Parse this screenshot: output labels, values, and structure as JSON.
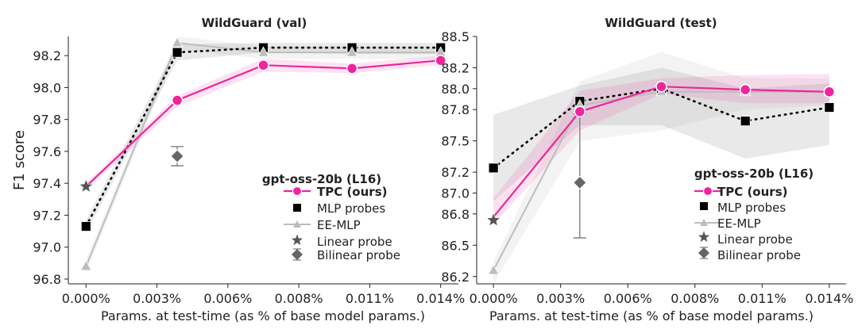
{
  "shared": {
    "ylabel": "F1 score",
    "xlabel": "Params. at test-time (as % of base model params.)",
    "legend_title": "gpt-oss-20b (L16)"
  },
  "chart_data": [
    {
      "type": "line",
      "title": "WildGuard (val)",
      "xlabel": "Params. at test-time (as % of base model params.)",
      "ylabel": "F1 score",
      "xlim": [
        -0.0007,
        0.0147
      ],
      "ylim": [
        96.77,
        98.32
      ],
      "x_ticks": [
        0,
        0.0028,
        0.0056,
        0.0084,
        0.0112,
        0.014
      ],
      "x_tick_labels": [
        "0.000%",
        "0.003%",
        "0.006%",
        "0.008%",
        "0.011%",
        "0.014%"
      ],
      "y_ticks": [
        96.8,
        97.0,
        97.2,
        97.4,
        97.6,
        97.8,
        98.0,
        98.2
      ],
      "y_tick_labels": [
        "96.8",
        "97.0",
        "97.2",
        "97.4",
        "97.6",
        "97.8",
        "98.0",
        "98.2"
      ],
      "legend_title": "gpt-oss-20b (L16)",
      "series": [
        {
          "name": "TPC (ours)",
          "color": "#f0249b",
          "marker": "circle",
          "x": [
            0,
            0.0036,
            0.007,
            0.0105,
            0.014
          ],
          "values": [
            97.38,
            97.92,
            98.14,
            98.12,
            98.17
          ],
          "band_low": [
            97.36,
            97.88,
            98.1,
            98.09,
            98.14
          ],
          "band_high": [
            97.4,
            97.95,
            98.18,
            98.15,
            98.2
          ]
        },
        {
          "name": "MLP probes",
          "color": "#000000",
          "marker": "square",
          "x": [
            0,
            0.0036,
            0.007,
            0.0105,
            0.014
          ],
          "values": [
            97.13,
            98.22,
            98.25,
            98.25,
            98.25
          ],
          "band_low": [
            97.09,
            98.17,
            98.22,
            98.21,
            98.21
          ],
          "band_high": [
            97.17,
            98.27,
            98.28,
            98.28,
            98.28
          ]
        },
        {
          "name": "EE-MLP",
          "color": "#bdbdbd",
          "marker": "triangle",
          "x": [
            0,
            0.0036,
            0.007,
            0.0105,
            0.014
          ],
          "values": [
            96.88,
            98.28,
            98.22,
            98.22,
            98.22
          ],
          "band_low": [
            96.84,
            98.24,
            98.18,
            98.18,
            98.18
          ],
          "band_high": [
            96.92,
            98.32,
            98.26,
            98.26,
            98.26
          ]
        },
        {
          "name": "Linear probe",
          "color": "#555555",
          "marker": "star",
          "x": [
            0
          ],
          "values": [
            97.38
          ]
        },
        {
          "name": "Bilinear probe",
          "color": "#666666",
          "marker": "diamond",
          "x": [
            0.0036
          ],
          "values": [
            97.57
          ],
          "err_low": [
            97.51
          ],
          "err_high": [
            97.63
          ]
        }
      ]
    },
    {
      "type": "line",
      "title": "WildGuard (test)",
      "xlabel": "Params. at test-time (as % of base model params.)",
      "ylabel": "",
      "xlim": [
        -0.0007,
        0.0147
      ],
      "ylim": [
        86.13,
        88.5
      ],
      "x_ticks": [
        0,
        0.0028,
        0.0056,
        0.0084,
        0.0112,
        0.014
      ],
      "x_tick_labels": [
        "0.000%",
        "0.003%",
        "0.006%",
        "0.008%",
        "0.011%",
        "0.014%"
      ],
      "y_ticks": [
        86.2,
        86.5,
        86.8,
        87.0,
        87.2,
        87.5,
        87.8,
        88.0,
        88.2,
        88.5
      ],
      "y_tick_labels": [
        "86.2",
        "86.5",
        "86.8",
        "87.0",
        "87.2",
        "87.5",
        "87.8",
        "88.0",
        "88.2",
        "88.5"
      ],
      "legend_title": "gpt-oss-20b (L16)",
      "series": [
        {
          "name": "TPC (ours)",
          "color": "#f0249b",
          "marker": "circle",
          "x": [
            0,
            0.0036,
            0.007,
            0.0105,
            0.014
          ],
          "values": [
            86.77,
            87.78,
            88.02,
            87.99,
            87.97
          ],
          "band_low": [
            86.7,
            87.6,
            87.95,
            87.86,
            87.86
          ],
          "band_high": [
            86.95,
            87.98,
            88.1,
            88.13,
            88.14
          ]
        },
        {
          "name": "MLP probes",
          "color": "#000000",
          "marker": "square",
          "x": [
            0,
            0.0036,
            0.007,
            0.0105,
            0.014
          ],
          "values": [
            87.24,
            87.88,
            88.0,
            87.69,
            87.82
          ],
          "band_low": [
            86.92,
            87.65,
            87.65,
            87.33,
            87.46
          ],
          "band_high": [
            87.75,
            88.03,
            88.2,
            88.0,
            88.05
          ]
        },
        {
          "name": "EE-MLP",
          "color": "#bdbdbd",
          "marker": "triangle",
          "x": [
            0,
            0.0036,
            0.007,
            0.0105,
            0.014
          ],
          "values": [
            86.26,
            87.84,
            87.97,
            87.97,
            87.97
          ],
          "band_low": [
            86.13,
            87.5,
            87.6,
            87.8,
            87.84
          ],
          "band_high": [
            86.34,
            88.07,
            88.35,
            88.1,
            88.1
          ]
        },
        {
          "name": "Linear probe",
          "color": "#555555",
          "marker": "star",
          "x": [
            0
          ],
          "values": [
            86.74
          ]
        },
        {
          "name": "Bilinear probe",
          "color": "#666666",
          "marker": "diamond",
          "x": [
            0.0036
          ],
          "values": [
            87.1
          ],
          "err_low": [
            86.57
          ],
          "err_high": [
            87.76
          ]
        }
      ]
    }
  ]
}
